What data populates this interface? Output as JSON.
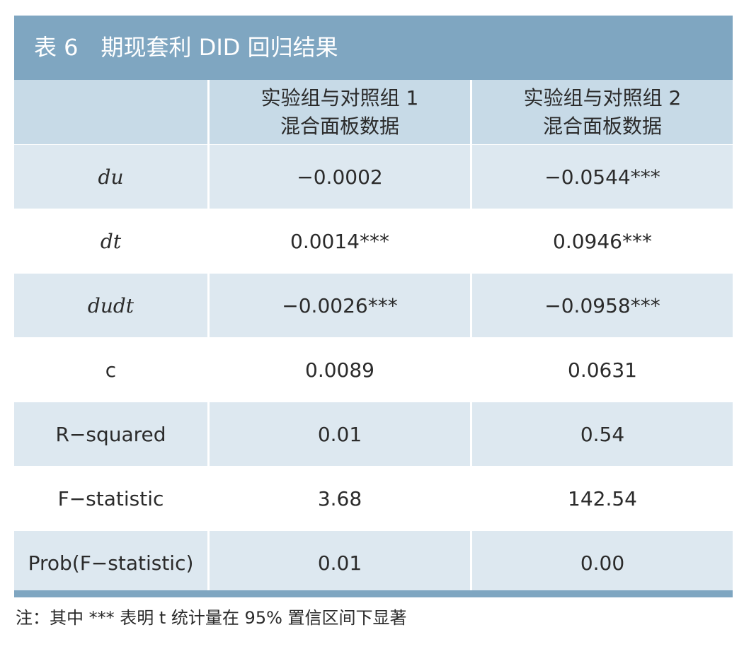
{
  "title": "表 6　期现套利 DID 回归结果",
  "table": {
    "header": [
      [
        "实验组与对照组 1",
        "混合面板数据"
      ],
      [
        "实验组与对照组 2",
        "混合面板数据"
      ]
    ],
    "rows": [
      {
        "label": "du",
        "italic": true,
        "values": [
          "−0.0002",
          "−0.0544***"
        ]
      },
      {
        "label": "dt",
        "italic": true,
        "values": [
          "0.0014***",
          "0.0946***"
        ]
      },
      {
        "label": "dudt",
        "italic": true,
        "values": [
          "−0.0026***",
          "−0.0958***"
        ]
      },
      {
        "label": "c",
        "italic": false,
        "values": [
          "0.0089",
          "0.0631"
        ]
      },
      {
        "label": "R−squared",
        "italic": false,
        "values": [
          "0.01",
          "0.54"
        ]
      },
      {
        "label": "F−statistic",
        "italic": false,
        "values": [
          "3.68",
          "142.54"
        ]
      },
      {
        "label": "Prob(F−statistic)",
        "italic": false,
        "values": [
          "0.01",
          "0.00"
        ]
      }
    ]
  },
  "note": "注：其中 *** 表明 t 统计量在 95% 置信区间下显著"
}
